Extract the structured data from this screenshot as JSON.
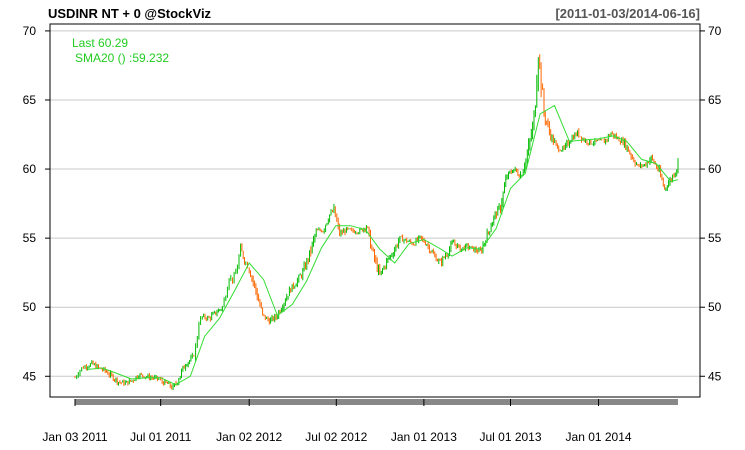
{
  "chart_data": {
    "type": "line",
    "title": "USDINR NT + 0 @StockViz",
    "date_range": "[2011-01-03/2014-06-16]",
    "legend": {
      "last": "Last 60.29",
      "sma": "SMA20 () :59.232"
    },
    "ylim": [
      43.5,
      70.5
    ],
    "y_ticks": [
      45,
      50,
      55,
      60,
      65,
      70
    ],
    "y_tick_labels": [
      "45",
      "50",
      "55",
      "60",
      "65",
      "70"
    ],
    "x_ticks": [
      {
        "date": "2011-01-03",
        "label": "Jan 03 2011"
      },
      {
        "date": "2011-07-01",
        "label": "Jul 01 2011"
      },
      {
        "date": "2012-01-02",
        "label": "Jan 02 2012"
      },
      {
        "date": "2012-07-02",
        "label": "Jul 02 2012"
      },
      {
        "date": "2013-01-01",
        "label": "Jan 01 2013"
      },
      {
        "date": "2013-07-01",
        "label": "Jul 01 2013"
      },
      {
        "date": "2014-01-01",
        "label": "Jan 01 2014"
      }
    ],
    "x_start": "2011-01-03",
    "x_end": "2014-06-16",
    "grid": true,
    "colors": {
      "up": "#00bb00",
      "down": "#ff6600",
      "sma": "#33dd33",
      "grid": "#c8c8c8",
      "axis_bar": "#888888"
    },
    "series": [
      {
        "name": "Last",
        "kind": "ohlc",
        "points": [
          {
            "x": "2011-01-03",
            "y": 44.9
          },
          {
            "x": "2011-01-10",
            "y": 45.3
          },
          {
            "x": "2011-01-17",
            "y": 45.6
          },
          {
            "x": "2011-01-24",
            "y": 45.7
          },
          {
            "x": "2011-02-07",
            "y": 45.9
          },
          {
            "x": "2011-02-21",
            "y": 45.6
          },
          {
            "x": "2011-03-07",
            "y": 45.4
          },
          {
            "x": "2011-03-21",
            "y": 45.0
          },
          {
            "x": "2011-04-04",
            "y": 44.6
          },
          {
            "x": "2011-04-18",
            "y": 44.5
          },
          {
            "x": "2011-05-02",
            "y": 44.7
          },
          {
            "x": "2011-05-16",
            "y": 45.1
          },
          {
            "x": "2011-05-30",
            "y": 45.0
          },
          {
            "x": "2011-06-13",
            "y": 44.9
          },
          {
            "x": "2011-06-27",
            "y": 44.8
          },
          {
            "x": "2011-07-04",
            "y": 44.6
          },
          {
            "x": "2011-07-18",
            "y": 44.4
          },
          {
            "x": "2011-07-27",
            "y": 44.1
          },
          {
            "x": "2011-08-08",
            "y": 44.9
          },
          {
            "x": "2011-08-22",
            "y": 45.9
          },
          {
            "x": "2011-09-05",
            "y": 46.3
          },
          {
            "x": "2011-09-12",
            "y": 47.0
          },
          {
            "x": "2011-09-19",
            "y": 48.9
          },
          {
            "x": "2011-09-26",
            "y": 49.3
          },
          {
            "x": "2011-10-10",
            "y": 49.2
          },
          {
            "x": "2011-10-24",
            "y": 49.6
          },
          {
            "x": "2011-11-07",
            "y": 50.0
          },
          {
            "x": "2011-11-14",
            "y": 51.0
          },
          {
            "x": "2011-11-21",
            "y": 52.2
          },
          {
            "x": "2011-11-28",
            "y": 52.0
          },
          {
            "x": "2011-12-05",
            "y": 52.4
          },
          {
            "x": "2011-12-15",
            "y": 54.2
          },
          {
            "x": "2011-12-26",
            "y": 53.2
          },
          {
            "x": "2012-01-02",
            "y": 52.8
          },
          {
            "x": "2012-01-16",
            "y": 51.2
          },
          {
            "x": "2012-01-30",
            "y": 49.4
          },
          {
            "x": "2012-02-13",
            "y": 49.0
          },
          {
            "x": "2012-02-27",
            "y": 49.3
          },
          {
            "x": "2012-03-12",
            "y": 50.2
          },
          {
            "x": "2012-03-26",
            "y": 51.2
          },
          {
            "x": "2012-04-09",
            "y": 51.8
          },
          {
            "x": "2012-04-23",
            "y": 52.5
          },
          {
            "x": "2012-05-07",
            "y": 53.8
          },
          {
            "x": "2012-05-21",
            "y": 55.5
          },
          {
            "x": "2012-06-04",
            "y": 55.6
          },
          {
            "x": "2012-06-18",
            "y": 56.7
          },
          {
            "x": "2012-06-27",
            "y": 57.0
          },
          {
            "x": "2012-07-09",
            "y": 55.3
          },
          {
            "x": "2012-07-23",
            "y": 55.6
          },
          {
            "x": "2012-08-06",
            "y": 55.5
          },
          {
            "x": "2012-08-20",
            "y": 55.5
          },
          {
            "x": "2012-09-03",
            "y": 55.9
          },
          {
            "x": "2012-09-17",
            "y": 53.8
          },
          {
            "x": "2012-10-01",
            "y": 52.3
          },
          {
            "x": "2012-10-15",
            "y": 53.3
          },
          {
            "x": "2012-10-29",
            "y": 54.0
          },
          {
            "x": "2012-11-12",
            "y": 55.0
          },
          {
            "x": "2012-11-26",
            "y": 54.8
          },
          {
            "x": "2012-12-10",
            "y": 54.6
          },
          {
            "x": "2012-12-24",
            "y": 55.0
          },
          {
            "x": "2013-01-07",
            "y": 54.6
          },
          {
            "x": "2013-01-21",
            "y": 53.8
          },
          {
            "x": "2013-02-04",
            "y": 53.2
          },
          {
            "x": "2013-02-18",
            "y": 53.9
          },
          {
            "x": "2013-03-04",
            "y": 54.7
          },
          {
            "x": "2013-03-18",
            "y": 54.2
          },
          {
            "x": "2013-04-01",
            "y": 54.4
          },
          {
            "x": "2013-04-15",
            "y": 54.2
          },
          {
            "x": "2013-04-29",
            "y": 54.0
          },
          {
            "x": "2013-05-13",
            "y": 55.2
          },
          {
            "x": "2013-05-27",
            "y": 56.5
          },
          {
            "x": "2013-06-10",
            "y": 57.3
          },
          {
            "x": "2013-06-24",
            "y": 59.5
          },
          {
            "x": "2013-07-08",
            "y": 60.0
          },
          {
            "x": "2013-07-22",
            "y": 59.5
          },
          {
            "x": "2013-08-05",
            "y": 61.0
          },
          {
            "x": "2013-08-19",
            "y": 63.5
          },
          {
            "x": "2013-08-28",
            "y": 68.5
          },
          {
            "x": "2013-09-09",
            "y": 64.0
          },
          {
            "x": "2013-09-23",
            "y": 62.4
          },
          {
            "x": "2013-10-07",
            "y": 61.5
          },
          {
            "x": "2013-10-21",
            "y": 61.4
          },
          {
            "x": "2013-11-04",
            "y": 62.2
          },
          {
            "x": "2013-11-18",
            "y": 62.6
          },
          {
            "x": "2013-12-02",
            "y": 62.1
          },
          {
            "x": "2013-12-16",
            "y": 61.9
          },
          {
            "x": "2013-12-30",
            "y": 62.0
          },
          {
            "x": "2014-01-13",
            "y": 62.0
          },
          {
            "x": "2014-01-27",
            "y": 62.6
          },
          {
            "x": "2014-02-10",
            "y": 62.2
          },
          {
            "x": "2014-02-24",
            "y": 61.9
          },
          {
            "x": "2014-03-10",
            "y": 61.0
          },
          {
            "x": "2014-03-24",
            "y": 60.2
          },
          {
            "x": "2014-04-07",
            "y": 60.3
          },
          {
            "x": "2014-04-21",
            "y": 60.8
          },
          {
            "x": "2014-05-05",
            "y": 60.0
          },
          {
            "x": "2014-05-19",
            "y": 58.6
          },
          {
            "x": "2014-06-02",
            "y": 59.3
          },
          {
            "x": "2014-06-16",
            "y": 60.29
          }
        ]
      },
      {
        "name": "SMA20",
        "kind": "line",
        "points": [
          {
            "x": "2011-01-31",
            "y": 45.5
          },
          {
            "x": "2011-03-01",
            "y": 45.6
          },
          {
            "x": "2011-04-01",
            "y": 45.2
          },
          {
            "x": "2011-05-01",
            "y": 44.8
          },
          {
            "x": "2011-06-01",
            "y": 44.9
          },
          {
            "x": "2011-07-01",
            "y": 44.9
          },
          {
            "x": "2011-08-01",
            "y": 44.4
          },
          {
            "x": "2011-09-01",
            "y": 45.0
          },
          {
            "x": "2011-10-01",
            "y": 47.9
          },
          {
            "x": "2011-11-01",
            "y": 49.2
          },
          {
            "x": "2011-12-01",
            "y": 51.1
          },
          {
            "x": "2012-01-02",
            "y": 53.2
          },
          {
            "x": "2012-02-01",
            "y": 52.0
          },
          {
            "x": "2012-03-01",
            "y": 49.4
          },
          {
            "x": "2012-04-01",
            "y": 50.2
          },
          {
            "x": "2012-05-01",
            "y": 51.9
          },
          {
            "x": "2012-06-01",
            "y": 54.3
          },
          {
            "x": "2012-07-01",
            "y": 55.9
          },
          {
            "x": "2012-08-01",
            "y": 55.9
          },
          {
            "x": "2012-09-01",
            "y": 55.6
          },
          {
            "x": "2012-10-01",
            "y": 54.2
          },
          {
            "x": "2012-11-01",
            "y": 53.2
          },
          {
            "x": "2012-12-01",
            "y": 54.6
          },
          {
            "x": "2013-01-01",
            "y": 54.9
          },
          {
            "x": "2013-02-01",
            "y": 54.3
          },
          {
            "x": "2013-03-01",
            "y": 53.7
          },
          {
            "x": "2013-04-01",
            "y": 54.3
          },
          {
            "x": "2013-05-01",
            "y": 54.2
          },
          {
            "x": "2013-06-01",
            "y": 55.7
          },
          {
            "x": "2013-07-01",
            "y": 58.6
          },
          {
            "x": "2013-08-01",
            "y": 59.7
          },
          {
            "x": "2013-09-01",
            "y": 64.0
          },
          {
            "x": "2013-10-01",
            "y": 64.6
          },
          {
            "x": "2013-11-01",
            "y": 62.0
          },
          {
            "x": "2013-12-01",
            "y": 62.1
          },
          {
            "x": "2014-01-01",
            "y": 62.2
          },
          {
            "x": "2014-02-01",
            "y": 62.4
          },
          {
            "x": "2014-03-01",
            "y": 62.0
          },
          {
            "x": "2014-04-01",
            "y": 60.7
          },
          {
            "x": "2014-05-01",
            "y": 60.4
          },
          {
            "x": "2014-06-01",
            "y": 59.1
          },
          {
            "x": "2014-06-16",
            "y": 59.232
          }
        ]
      }
    ]
  }
}
